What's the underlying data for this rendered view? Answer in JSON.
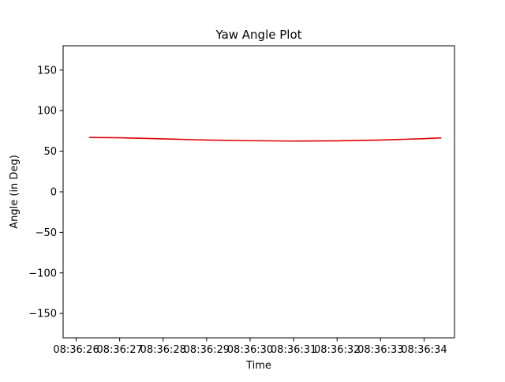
{
  "chart_data": {
    "type": "line",
    "title": "Yaw Angle Plot",
    "xlabel": "Time",
    "ylabel": "Angle (in Deg)",
    "ylim": [
      -180,
      180
    ],
    "xlim": [
      "08:36:25.7",
      "08:36:34.7"
    ],
    "x_ticks": [
      "08:36:26",
      "08:36:27",
      "08:36:28",
      "08:36:29",
      "08:36:30",
      "08:36:31",
      "08:36:32",
      "08:36:33",
      "08:36:34"
    ],
    "y_ticks": [
      150,
      100,
      50,
      0,
      -50,
      -100,
      -150
    ],
    "grid": false,
    "legend": "none",
    "series": [
      {
        "color": "#e00000",
        "x": [
          "08:36:26.3",
          "08:36:27.0",
          "08:36:28.0",
          "08:36:29.0",
          "08:36:30.0",
          "08:36:31.0",
          "08:36:32.0",
          "08:36:33.0",
          "08:36:34.0",
          "08:36:34.4"
        ],
        "values": [
          67,
          66.6,
          65.3,
          63.8,
          63.0,
          62.5,
          62.8,
          63.8,
          65.5,
          66.5
        ]
      }
    ]
  }
}
